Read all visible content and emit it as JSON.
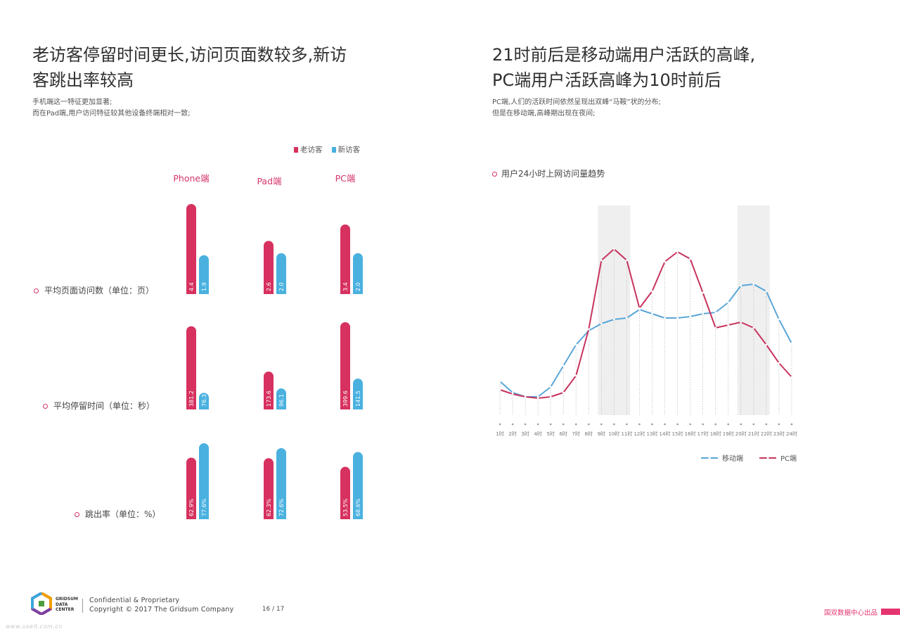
{
  "left": {
    "title_line1": "老访客停留时间更长,访问页面数较多,新访",
    "title_line2": "客跳出率较高",
    "desc_line1": "手机端这一特征更加显著;",
    "desc_line2": "而在Pad端,用户访问特征较其他设备终端相对一致;",
    "legend": [
      {
        "label": "老访客",
        "color": "#d6315f"
      },
      {
        "label": "新访客",
        "color": "#4ab1df"
      }
    ],
    "devices": [
      "Phone端",
      "Pad端",
      "PC端"
    ],
    "metrics": [
      "平均页面访问数（单位：页）",
      "平均停留时间（单位：秒）",
      "跳出率（单位：%）"
    ]
  },
  "right": {
    "title_line1": "21时前后是移动端用户活跃的高峰,",
    "title_line2": "PC端用户活跃高峰为10时前后",
    "desc_line1": "PC端,人们的活跃时间依然呈现出双峰“马鞍”状的分布;",
    "desc_line2": "但是在移动端,高峰期出现在夜间;",
    "chart_title": "用户24小时上网访问量趋势"
  },
  "footer": {
    "logo_line1": "GRIDSUM",
    "logo_line2": "DATA",
    "logo_line3": "CENTER",
    "confidential": "Confidential & Proprietary",
    "copyright": "Copyright © 2017 The Gridsum Company",
    "page": "16 / 17",
    "produced_by": "国双数据中心出品",
    "watermark": "www.useit.com.cn"
  },
  "colors": {
    "old": "#d6315f",
    "new": "#4ab1df",
    "mobile": "#5aa6d8",
    "pc": "#c8335d",
    "accent": "#e4346f"
  },
  "chart_data": [
    {
      "type": "bar",
      "title": "平均页面访问数（单位：页）",
      "categories": [
        "Phone端",
        "Pad端",
        "PC端"
      ],
      "series": [
        {
          "name": "老访客",
          "values": [
            4.4,
            2.6,
            3.4
          ],
          "labels": [
            "4.4",
            "2.6",
            "3.4"
          ]
        },
        {
          "name": "新访客",
          "values": [
            1.9,
            2.0,
            2.0
          ],
          "labels": [
            "1.9",
            "2.0",
            "2.0"
          ]
        }
      ],
      "ylim": [
        0,
        4.4
      ]
    },
    {
      "type": "bar",
      "title": "平均停留时间（单位：秒）",
      "categories": [
        "Phone端",
        "Pad端",
        "PC端"
      ],
      "series": [
        {
          "name": "老访客",
          "values": [
            381.2,
            173.6,
            399.6
          ],
          "labels": [
            "381.2",
            "173.6",
            "399.6"
          ]
        },
        {
          "name": "新访客",
          "values": [
            76.3,
            96.1,
            141.5
          ],
          "labels": [
            "76.3",
            "96.1",
            "141.5"
          ]
        }
      ],
      "ylim": [
        0,
        399.6
      ]
    },
    {
      "type": "bar",
      "title": "跳出率（单位：%）",
      "categories": [
        "Phone端",
        "Pad端",
        "PC端"
      ],
      "series": [
        {
          "name": "老访客",
          "values": [
            62.9,
            62.3,
            53.5
          ],
          "labels": [
            "62.9%",
            "62.3%",
            "53.5%"
          ]
        },
        {
          "name": "新访客",
          "values": [
            77.6,
            72.6,
            68.6
          ],
          "labels": [
            "77.6%",
            "72.6%",
            "68.6%"
          ]
        }
      ],
      "ylim": [
        0,
        77.6
      ]
    },
    {
      "type": "line",
      "title": "用户24小时上网访问量趋势",
      "x": [
        "1时",
        "2时",
        "3时",
        "4时",
        "5时",
        "6时",
        "7时",
        "8时",
        "9时",
        "10时",
        "11时",
        "12时",
        "13时",
        "14时",
        "15时",
        "16时",
        "17时",
        "18时",
        "19时",
        "20时",
        "21时",
        "22时",
        "23时",
        "24时"
      ],
      "series": [
        {
          "name": "移动端",
          "values": [
            29,
            21,
            18,
            18,
            25,
            40,
            55,
            65,
            70,
            73,
            74,
            80,
            77,
            74,
            74,
            75,
            77,
            78,
            85,
            97,
            98,
            93,
            73,
            56
          ]
        },
        {
          "name": "PC端",
          "values": [
            23,
            20,
            18,
            17,
            18,
            21,
            33,
            66,
            115,
            123,
            115,
            81,
            93,
            114,
            121,
            116,
            92,
            67,
            69,
            71,
            67,
            55,
            42,
            32
          ]
        }
      ],
      "ylim": [
        0,
        130
      ],
      "shaded_x": [
        [
          "9时",
          "11时"
        ],
        [
          "20时",
          "22时"
        ]
      ],
      "legend_position": "bottom"
    }
  ]
}
